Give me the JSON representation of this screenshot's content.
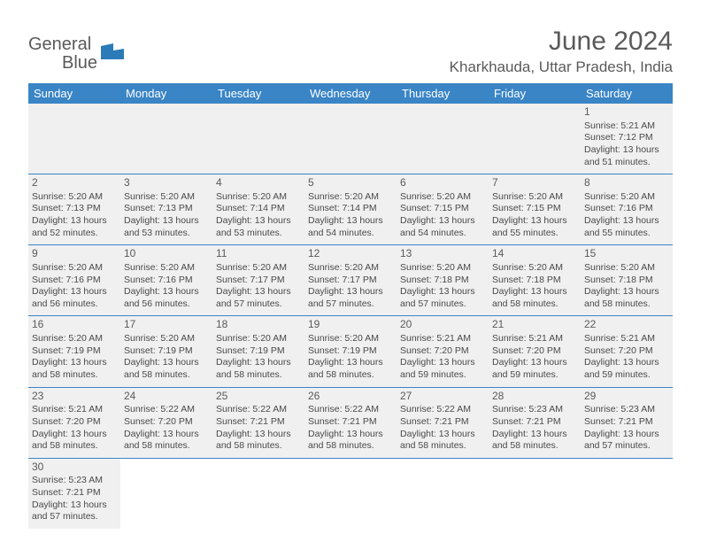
{
  "logo": {
    "text1": "General",
    "text2": "Blue"
  },
  "title": "June 2024",
  "location": "Kharkhauda, Uttar Pradesh, India",
  "weekdays": [
    "Sunday",
    "Monday",
    "Tuesday",
    "Wednesday",
    "Thursday",
    "Friday",
    "Saturday"
  ],
  "colors": {
    "header_bg": "#3a85c6",
    "cell_bg": "#f0f0f0",
    "text": "#5a5a5a",
    "logo_blue": "#2c7bb8"
  },
  "weeks": [
    [
      null,
      null,
      null,
      null,
      null,
      null,
      {
        "n": "1",
        "sr": "5:21 AM",
        "ss": "7:12 PM",
        "dl": "13 hours and 51 minutes."
      }
    ],
    [
      {
        "n": "2",
        "sr": "5:20 AM",
        "ss": "7:13 PM",
        "dl": "13 hours and 52 minutes."
      },
      {
        "n": "3",
        "sr": "5:20 AM",
        "ss": "7:13 PM",
        "dl": "13 hours and 53 minutes."
      },
      {
        "n": "4",
        "sr": "5:20 AM",
        "ss": "7:14 PM",
        "dl": "13 hours and 53 minutes."
      },
      {
        "n": "5",
        "sr": "5:20 AM",
        "ss": "7:14 PM",
        "dl": "13 hours and 54 minutes."
      },
      {
        "n": "6",
        "sr": "5:20 AM",
        "ss": "7:15 PM",
        "dl": "13 hours and 54 minutes."
      },
      {
        "n": "7",
        "sr": "5:20 AM",
        "ss": "7:15 PM",
        "dl": "13 hours and 55 minutes."
      },
      {
        "n": "8",
        "sr": "5:20 AM",
        "ss": "7:16 PM",
        "dl": "13 hours and 55 minutes."
      }
    ],
    [
      {
        "n": "9",
        "sr": "5:20 AM",
        "ss": "7:16 PM",
        "dl": "13 hours and 56 minutes."
      },
      {
        "n": "10",
        "sr": "5:20 AM",
        "ss": "7:16 PM",
        "dl": "13 hours and 56 minutes."
      },
      {
        "n": "11",
        "sr": "5:20 AM",
        "ss": "7:17 PM",
        "dl": "13 hours and 57 minutes."
      },
      {
        "n": "12",
        "sr": "5:20 AM",
        "ss": "7:17 PM",
        "dl": "13 hours and 57 minutes."
      },
      {
        "n": "13",
        "sr": "5:20 AM",
        "ss": "7:18 PM",
        "dl": "13 hours and 57 minutes."
      },
      {
        "n": "14",
        "sr": "5:20 AM",
        "ss": "7:18 PM",
        "dl": "13 hours and 58 minutes."
      },
      {
        "n": "15",
        "sr": "5:20 AM",
        "ss": "7:18 PM",
        "dl": "13 hours and 58 minutes."
      }
    ],
    [
      {
        "n": "16",
        "sr": "5:20 AM",
        "ss": "7:19 PM",
        "dl": "13 hours and 58 minutes."
      },
      {
        "n": "17",
        "sr": "5:20 AM",
        "ss": "7:19 PM",
        "dl": "13 hours and 58 minutes."
      },
      {
        "n": "18",
        "sr": "5:20 AM",
        "ss": "7:19 PM",
        "dl": "13 hours and 58 minutes."
      },
      {
        "n": "19",
        "sr": "5:20 AM",
        "ss": "7:19 PM",
        "dl": "13 hours and 58 minutes."
      },
      {
        "n": "20",
        "sr": "5:21 AM",
        "ss": "7:20 PM",
        "dl": "13 hours and 59 minutes."
      },
      {
        "n": "21",
        "sr": "5:21 AM",
        "ss": "7:20 PM",
        "dl": "13 hours and 59 minutes."
      },
      {
        "n": "22",
        "sr": "5:21 AM",
        "ss": "7:20 PM",
        "dl": "13 hours and 59 minutes."
      }
    ],
    [
      {
        "n": "23",
        "sr": "5:21 AM",
        "ss": "7:20 PM",
        "dl": "13 hours and 58 minutes."
      },
      {
        "n": "24",
        "sr": "5:22 AM",
        "ss": "7:20 PM",
        "dl": "13 hours and 58 minutes."
      },
      {
        "n": "25",
        "sr": "5:22 AM",
        "ss": "7:21 PM",
        "dl": "13 hours and 58 minutes."
      },
      {
        "n": "26",
        "sr": "5:22 AM",
        "ss": "7:21 PM",
        "dl": "13 hours and 58 minutes."
      },
      {
        "n": "27",
        "sr": "5:22 AM",
        "ss": "7:21 PM",
        "dl": "13 hours and 58 minutes."
      },
      {
        "n": "28",
        "sr": "5:23 AM",
        "ss": "7:21 PM",
        "dl": "13 hours and 58 minutes."
      },
      {
        "n": "29",
        "sr": "5:23 AM",
        "ss": "7:21 PM",
        "dl": "13 hours and 57 minutes."
      }
    ],
    [
      {
        "n": "30",
        "sr": "5:23 AM",
        "ss": "7:21 PM",
        "dl": "13 hours and 57 minutes."
      },
      null,
      null,
      null,
      null,
      null,
      null
    ]
  ],
  "labels": {
    "sunrise": "Sunrise: ",
    "sunset": "Sunset: ",
    "daylight": "Daylight: "
  }
}
